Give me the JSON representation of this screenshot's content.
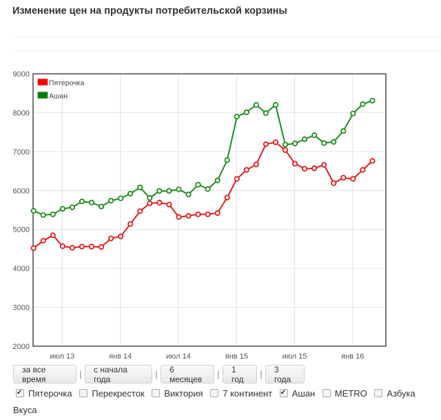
{
  "page": {
    "title": "Изменение цен на продукты потребительской корзины"
  },
  "chart_data": {
    "type": "line",
    "title": "",
    "xlabel": "",
    "ylabel": "",
    "ylim": [
      2000,
      9000
    ],
    "yticks": [
      2000,
      3000,
      4000,
      5000,
      6000,
      7000,
      8000,
      9000
    ],
    "xtick_labels": [
      "июл 13",
      "янв 14",
      "июл 14",
      "янв 15",
      "июл 15",
      "янв 16"
    ],
    "xtick_index": [
      3,
      9,
      15,
      21,
      27,
      33
    ],
    "grid": true,
    "legend_position": "top-left inside",
    "x": [
      0,
      1,
      2,
      3,
      4,
      5,
      6,
      7,
      8,
      9,
      10,
      11,
      12,
      13,
      14,
      15,
      16,
      17,
      18,
      19,
      20,
      21,
      22,
      23,
      24,
      25,
      26,
      27,
      28,
      29,
      30,
      31,
      32,
      33,
      34,
      35
    ],
    "series": [
      {
        "name": "Пятерочка",
        "color": "#e31b1b",
        "values": [
          4520,
          4710,
          4850,
          4570,
          4530,
          4560,
          4560,
          4550,
          4770,
          4820,
          5140,
          5470,
          5670,
          5690,
          5640,
          5320,
          5350,
          5390,
          5390,
          5420,
          5820,
          6300,
          6530,
          6670,
          7190,
          7240,
          7040,
          6690,
          6560,
          6570,
          6660,
          6190,
          6330,
          6300,
          6530,
          6760
        ]
      },
      {
        "name": "Ашан",
        "color": "#1e8c1e",
        "values": [
          5480,
          5370,
          5390,
          5530,
          5570,
          5720,
          5690,
          5590,
          5740,
          5800,
          5920,
          6080,
          5810,
          5990,
          5990,
          6030,
          5900,
          6150,
          6040,
          6260,
          6780,
          7900,
          8010,
          8200,
          7990,
          8200,
          7180,
          7210,
          7320,
          7420,
          7220,
          7250,
          7530,
          7980,
          8220,
          8310
        ]
      }
    ]
  },
  "legend": {
    "items": [
      {
        "label": "Пятерочка",
        "swatch": "#ff0000"
      },
      {
        "label": "Ашан",
        "swatch": "#008000"
      }
    ]
  },
  "range_buttons": [
    {
      "label": "за все время"
    },
    {
      "label": "с начала года"
    },
    {
      "label": "6 месяцев"
    },
    {
      "label": "1 год"
    },
    {
      "label": "3 года"
    }
  ],
  "separator": "|",
  "stores": [
    {
      "label": "Пятерочка",
      "checked": true
    },
    {
      "label": "Перекресток",
      "checked": false
    },
    {
      "label": "Виктория",
      "checked": false
    },
    {
      "label": "7 континент",
      "checked": false
    },
    {
      "label": "Ашан",
      "checked": true
    },
    {
      "label": "METRO",
      "checked": false
    },
    {
      "label": "Азбука Вкуса",
      "checked": false
    }
  ]
}
